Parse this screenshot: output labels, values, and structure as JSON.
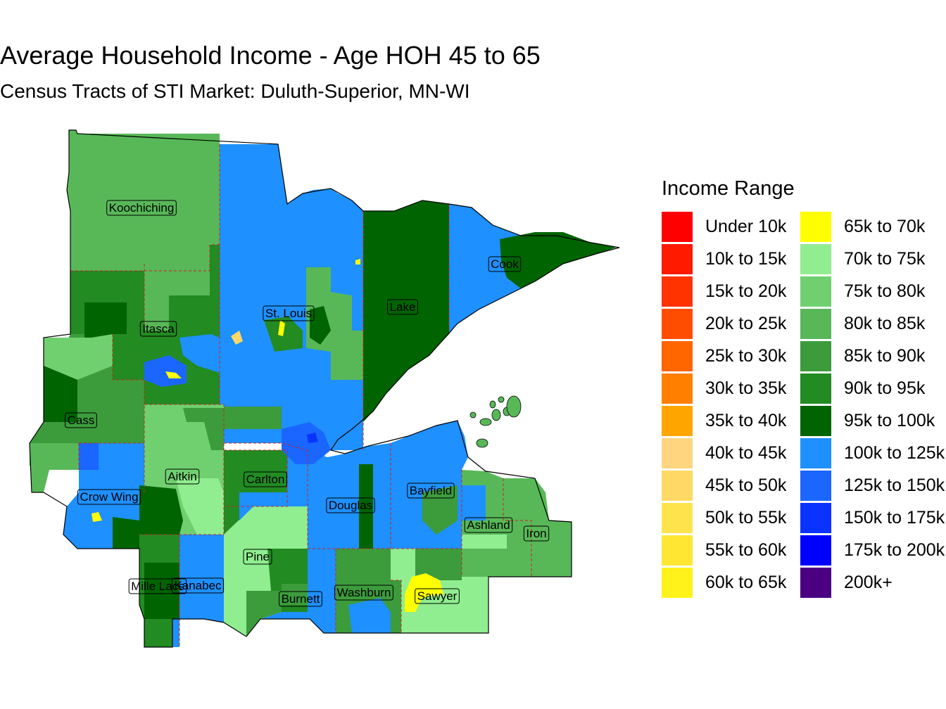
{
  "title": "Average Household Income - Age HOH 45 to 65",
  "subtitle": "Census Tracts of STI Market: Duluth-Superior, MN-WI",
  "legend": {
    "title": "Income Range",
    "placement": "right",
    "items": [
      {
        "label": "Under 10k",
        "color": "#FF0000"
      },
      {
        "label": "10k to 15k",
        "color": "#FF1A00"
      },
      {
        "label": "15k to 20k",
        "color": "#FF3300"
      },
      {
        "label": "20k to 25k",
        "color": "#FF4D00"
      },
      {
        "label": "25k to 30k",
        "color": "#FF6600"
      },
      {
        "label": "30k to 35k",
        "color": "#FF8000"
      },
      {
        "label": "35k to 40k",
        "color": "#FFA500"
      },
      {
        "label": "40k to 45k",
        "color": "#FFD580"
      },
      {
        "label": "45k to 50k",
        "color": "#FFD966"
      },
      {
        "label": "50k to 55k",
        "color": "#FFE34D"
      },
      {
        "label": "55k to 60k",
        "color": "#FFE633"
      },
      {
        "label": "60k to 65k",
        "color": "#FFF21A"
      },
      {
        "label": "65k to 70k",
        "color": "#FFFF00"
      },
      {
        "label": "70k to 75k",
        "color": "#90EE90"
      },
      {
        "label": "75k to 80k",
        "color": "#70D070"
      },
      {
        "label": "80k to 85k",
        "color": "#58B858"
      },
      {
        "label": "85k to 90k",
        "color": "#3C9C3C"
      },
      {
        "label": "90k to 95k",
        "color": "#228B22"
      },
      {
        "label": "95k to 100k",
        "color": "#006400"
      },
      {
        "label": "100k to 125k",
        "color": "#1E90FF"
      },
      {
        "label": "125k to 150k",
        "color": "#1A66FF"
      },
      {
        "label": "150k to 175k",
        "color": "#0A33FF"
      },
      {
        "label": "175k to 200k",
        "color": "#0000FF"
      },
      {
        "label": "200k+",
        "color": "#4B0082"
      }
    ]
  },
  "counties": [
    "Koochiching",
    "Cook",
    "St. Louis",
    "Lake",
    "Itasca",
    "Cass",
    "Aitkin",
    "Carlton",
    "Crow Wing",
    "Bayfield",
    "Douglas",
    "Ashland",
    "Iron",
    "Pine",
    "Mille Lacs",
    "Kanabec",
    "Burnett",
    "Washburn",
    "Sawyer"
  ],
  "boundary_color": "#CC2222"
}
